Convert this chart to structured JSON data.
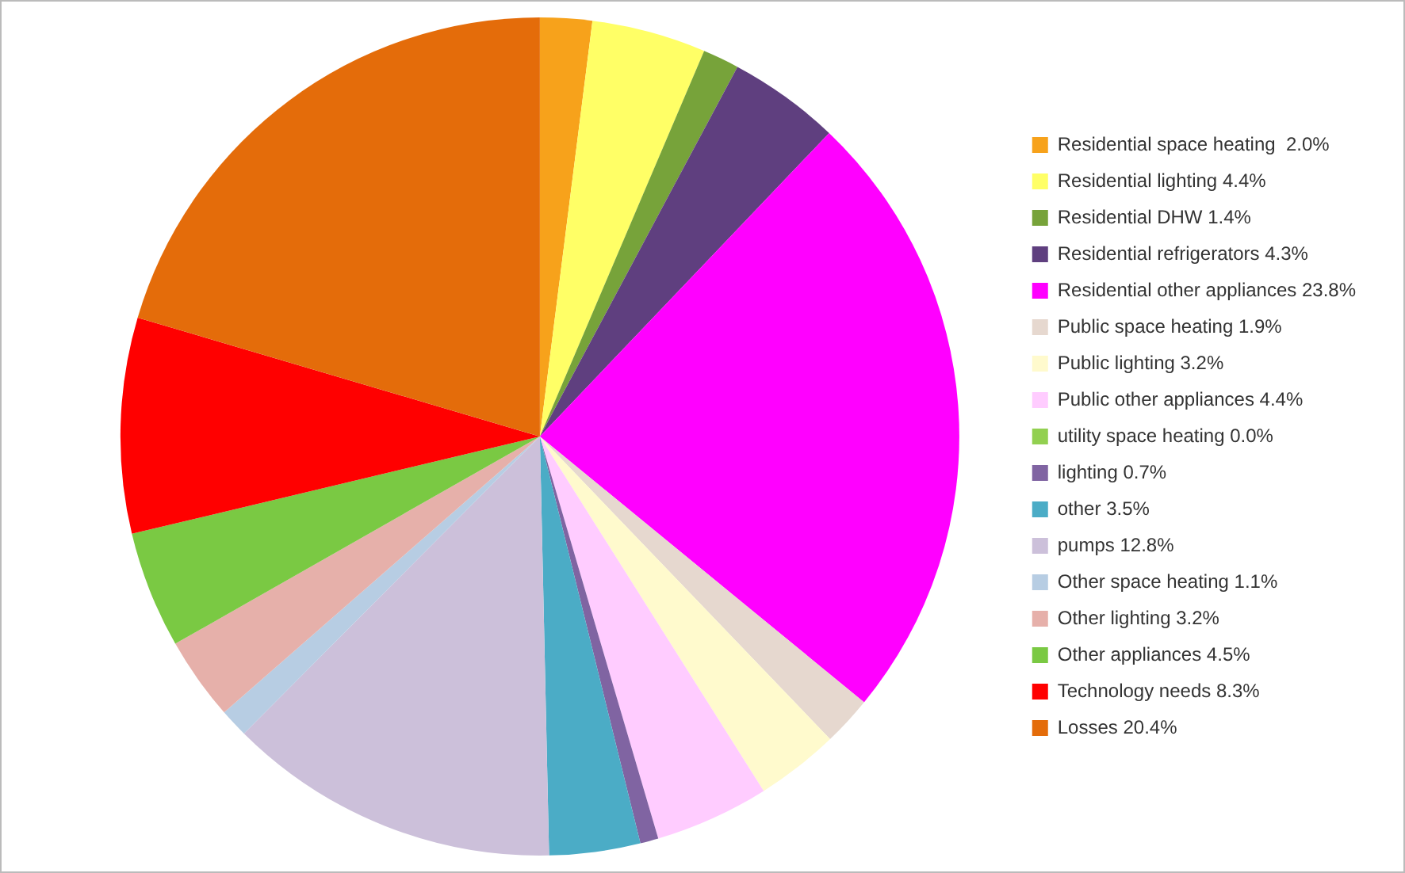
{
  "chart_data": {
    "type": "pie",
    "legend": "right",
    "categories": [
      "Residential space heating  2.0%",
      "Residential lighting 4.4%",
      "Residential DHW 1.4%",
      "Residential refrigerators 4.3%",
      "Residential other appliances 23.8%",
      "Public space heating 1.9%",
      "Public lighting 3.2%",
      "Public other appliances 4.4%",
      "utility space heating 0.0%",
      "lighting 0.7%",
      "other 3.5%",
      "pumps 12.8%",
      "Other space heating 1.1%",
      "Other lighting 3.2%",
      "Other appliances 4.5%",
      "Technology needs 8.3%",
      "Losses 20.4%"
    ],
    "values": [
      2.0,
      4.4,
      1.4,
      4.3,
      23.8,
      1.9,
      3.2,
      4.4,
      0.0,
      0.7,
      3.5,
      12.8,
      1.1,
      3.2,
      4.5,
      8.3,
      20.4
    ],
    "colors": [
      "#f7a21b",
      "#ffff66",
      "#77a33a",
      "#5f3f7f",
      "#ff00ff",
      "#e6d8cf",
      "#fffacd",
      "#ffccff",
      "#92d050",
      "#8064a2",
      "#4bacc6",
      "#ccc0da",
      "#b7cde3",
      "#e6b0aa",
      "#7ac943",
      "#ff0000",
      "#e46c0a"
    ]
  }
}
